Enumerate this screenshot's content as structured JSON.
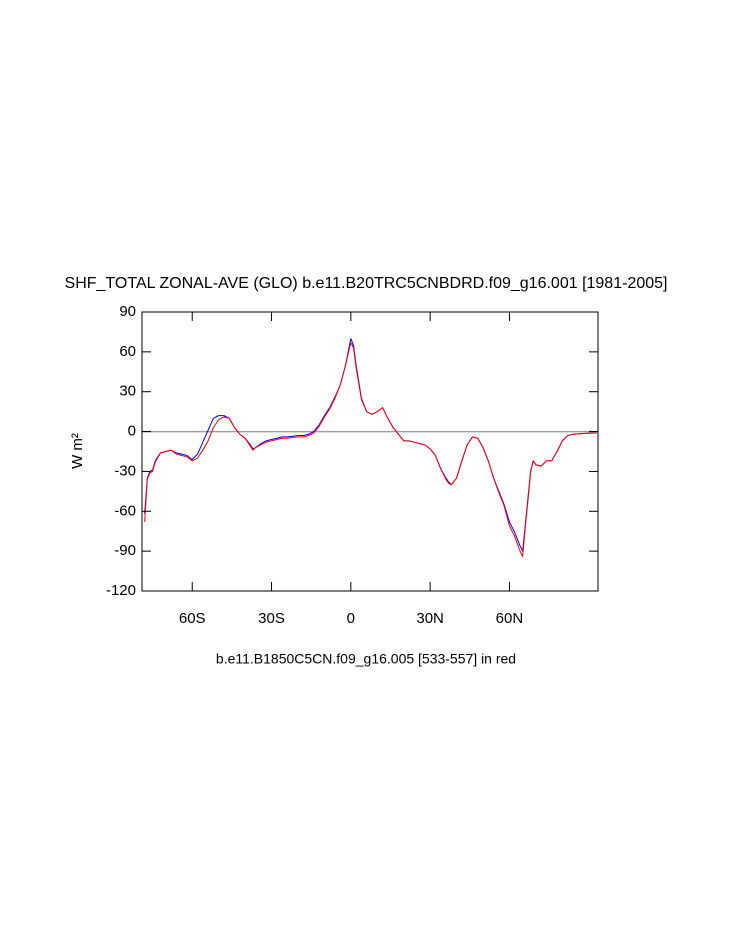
{
  "chart_data": {
    "type": "line",
    "title": "SHF_TOTAL ZONAL-AVE (GLO) b.e11.B20TRC5CNBDRD.f09_g16.001 [1981-2005]",
    "subtitle": "b.e11.B1850C5CN.f09_g16.005 [533-557] in red",
    "y_label": "W m²",
    "xlim": [
      -79,
      93.5
    ],
    "ylim": [
      -120,
      90
    ],
    "xticks": [
      {
        "value": -60,
        "label": "60S"
      },
      {
        "value": -30,
        "label": "30S"
      },
      0,
      {
        "value": 30,
        "label": "30N"
      },
      {
        "value": 60,
        "label": "60N"
      }
    ],
    "yticks": [
      90,
      60,
      30,
      0,
      -30,
      -60,
      -90,
      -120
    ],
    "reference_lines": [
      0
    ],
    "reference_color": "#a0a0a0",
    "x": [
      -78,
      -77,
      -76,
      -75,
      -74,
      -72,
      -70,
      -68,
      -66,
      -64,
      -62,
      -60,
      -58,
      -56,
      -54,
      -52,
      -50,
      -48,
      -46,
      -44,
      -42,
      -40,
      -38,
      -37,
      -36,
      -34,
      -32,
      -30,
      -28,
      -26,
      -24,
      -22,
      -20,
      -18,
      -16,
      -14,
      -12,
      -10,
      -8,
      -6,
      -4,
      -2,
      0,
      1,
      2,
      4,
      6,
      8,
      10,
      12,
      14,
      16,
      18,
      20,
      22,
      24,
      26,
      28,
      30,
      32,
      34,
      36,
      37,
      38,
      40,
      42,
      44,
      46,
      48,
      50,
      52,
      54,
      56,
      58,
      60,
      62,
      64,
      65,
      66,
      67,
      68,
      69,
      70,
      72,
      74,
      76,
      78,
      80,
      82,
      84,
      88,
      93
    ],
    "series": [
      {
        "color": "#0000ff",
        "values": [
          -62,
          -35,
          -30,
          -29,
          -22,
          -16,
          -15,
          -14,
          -16,
          -17,
          -18,
          -21,
          -17,
          -8,
          1,
          10,
          12,
          12,
          10,
          3,
          -2,
          -5,
          -10,
          -13,
          -12,
          -9,
          -7,
          -6,
          -5,
          -4,
          -4,
          -3.5,
          -3,
          -3,
          -2,
          0,
          5,
          12,
          18,
          26,
          35,
          50,
          70,
          65,
          50,
          25,
          15,
          13,
          15,
          18,
          10,
          3,
          -2,
          -7,
          -7,
          -8,
          -9,
          -10,
          -13,
          -18,
          -28,
          -35,
          -38,
          -40,
          -35,
          -22,
          -10,
          -4,
          -5,
          -12,
          -22,
          -35,
          -45,
          -55,
          -68,
          -76,
          -86,
          -90,
          -70,
          -50,
          -30,
          -22,
          -25,
          -26,
          -22,
          -22,
          -15,
          -7,
          -3,
          -2,
          -1.5,
          -1
        ]
      },
      {
        "color": "#ff0000",
        "values": [
          -68,
          -36,
          -31,
          -30,
          -23,
          -16,
          -15,
          -14,
          -17,
          -18,
          -19,
          -22,
          -20,
          -14,
          -7,
          3,
          9,
          11,
          10,
          3,
          -2,
          -5,
          -11,
          -14,
          -12,
          -10,
          -8,
          -7,
          -6,
          -5,
          -5,
          -4.5,
          -4,
          -4,
          -3,
          -1,
          4,
          11,
          17,
          25,
          35,
          50,
          67,
          63,
          48,
          24,
          15,
          13,
          15,
          18,
          10,
          3,
          -2,
          -7,
          -7,
          -8,
          -9,
          -10,
          -13,
          -18,
          -28,
          -36,
          -39,
          -40,
          -35,
          -22,
          -10,
          -4,
          -5,
          -12,
          -22,
          -35,
          -46,
          -56,
          -71,
          -79,
          -90,
          -94,
          -72,
          -52,
          -31,
          -22,
          -25,
          -26,
          -22,
          -22,
          -15,
          -7,
          -3,
          -2,
          -1.5,
          -1
        ]
      }
    ]
  }
}
